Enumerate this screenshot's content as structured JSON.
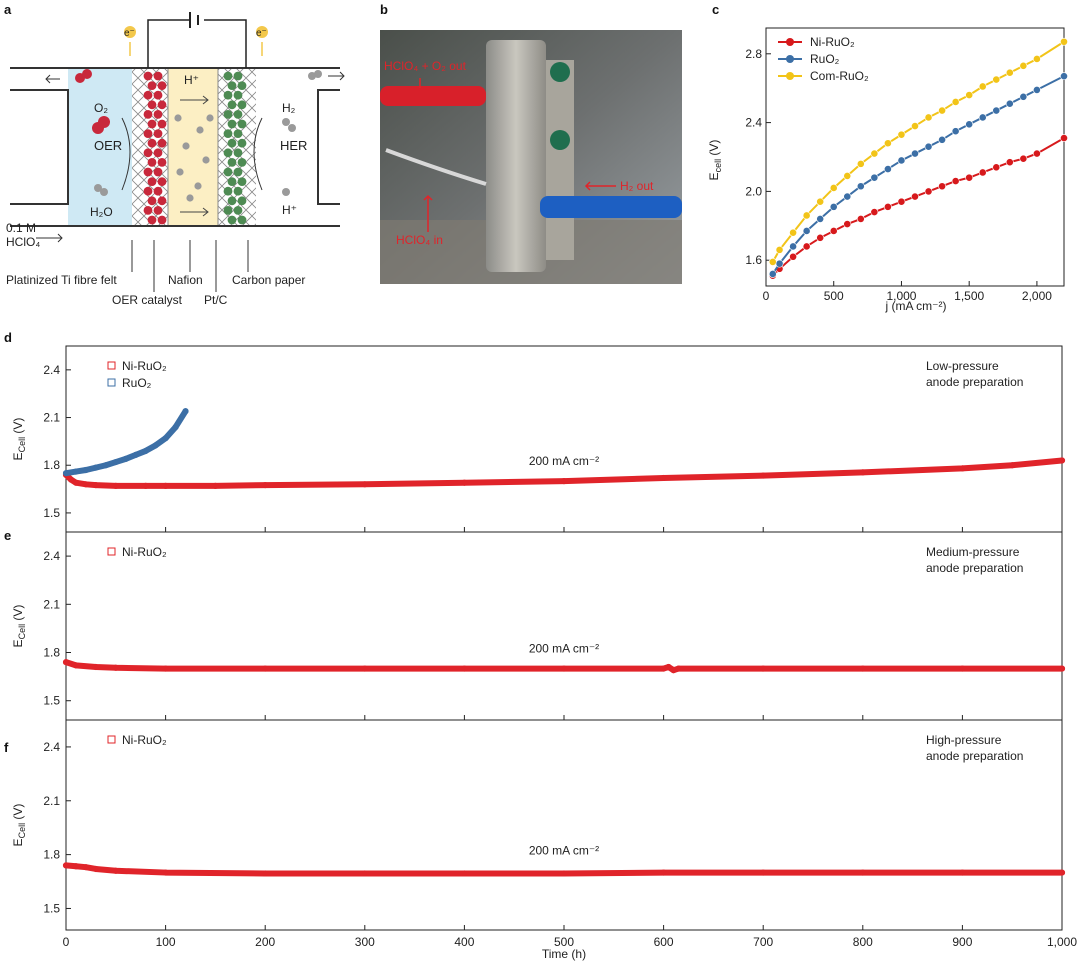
{
  "panel_labels": {
    "a": "a",
    "b": "b",
    "c": "c",
    "d": "d",
    "e": "e",
    "f": "f"
  },
  "schematic": {
    "electron_left": "e⁻",
    "electron_right": "e⁻",
    "proton": "H⁺",
    "o2": "O₂",
    "h2o": "H₂O",
    "oer": "OER",
    "h2": "H₂",
    "her": "HER",
    "h_plus": "H⁺",
    "electrolyte_line1": "0.1 M",
    "electrolyte_line2": "HClO₄",
    "label_felt": "Platinized Ti fibre felt",
    "label_catalyst": "OER catalyst",
    "label_nafion": "Nafion",
    "label_ptc": "Pt/C",
    "label_carbon": "Carbon paper",
    "colors": {
      "electrolyte": "#cfe9f4",
      "membrane": "#fcefc4",
      "anode_particle": "#c8283b",
      "cathode_particle": "#4e8b53",
      "ion": "#9a9a9a"
    }
  },
  "photo": {
    "label_o2_out": "HClO₄ + O₂ out",
    "label_h2_out": "H₂ out",
    "label_in": "HClO₄ in"
  },
  "chart_data": [
    {
      "id": "c",
      "type": "line",
      "xlabel": "j (mA cm⁻²)",
      "ylabel": "E_cell (V)",
      "xlim": [
        0,
        2200
      ],
      "ylim": [
        1.45,
        2.95
      ],
      "xticks": [
        0,
        500,
        1000,
        1500,
        2000
      ],
      "xtick_labels": [
        "0",
        "500",
        "1,000",
        "1,500",
        "2,000"
      ],
      "yticks": [
        1.6,
        2.0,
        2.4,
        2.8
      ],
      "ytick_labels": [
        "1.6",
        "2.0",
        "2.4",
        "2.8"
      ],
      "legend": "top-left",
      "x": [
        50,
        100,
        200,
        300,
        400,
        500,
        600,
        700,
        800,
        900,
        1000,
        1100,
        1200,
        1300,
        1400,
        1500,
        1600,
        1700,
        1800,
        1900,
        2000,
        2200
      ],
      "series": [
        {
          "name": "Ni-RuO₂",
          "color": "#d7191c",
          "values": [
            1.51,
            1.55,
            1.62,
            1.68,
            1.73,
            1.77,
            1.81,
            1.84,
            1.88,
            1.91,
            1.94,
            1.97,
            2.0,
            2.03,
            2.06,
            2.08,
            2.11,
            2.14,
            2.17,
            2.19,
            2.22,
            2.31
          ]
        },
        {
          "name": "RuO₂",
          "color": "#3c6fa6",
          "values": [
            1.52,
            1.58,
            1.68,
            1.77,
            1.84,
            1.91,
            1.97,
            2.03,
            2.08,
            2.13,
            2.18,
            2.22,
            2.26,
            2.3,
            2.35,
            2.39,
            2.43,
            2.47,
            2.51,
            2.55,
            2.59,
            2.67
          ]
        },
        {
          "name": "Com-RuO₂",
          "color": "#f2c418",
          "values": [
            1.59,
            1.66,
            1.76,
            1.86,
            1.94,
            2.02,
            2.09,
            2.16,
            2.22,
            2.28,
            2.33,
            2.38,
            2.43,
            2.47,
            2.52,
            2.56,
            2.61,
            2.65,
            2.69,
            2.73,
            2.77,
            2.87
          ]
        }
      ]
    },
    {
      "id": "d",
      "type": "scatter",
      "ylabel": "E_Cell (V)",
      "xlim": [
        0,
        1000
      ],
      "ylim": [
        1.38,
        2.55
      ],
      "yticks": [
        1.5,
        1.8,
        2.1,
        2.4
      ],
      "ytick_labels": [
        "1.5",
        "1.8",
        "2.1",
        "2.4"
      ],
      "legend": "top-left",
      "annotation": "200 mA cm⁻²",
      "note_line1": "Low-pressure",
      "note_line2": "anode preparation",
      "series": [
        {
          "name": "Ni-RuO₂",
          "color": "#e0242a",
          "x": [
            0,
            5,
            10,
            20,
            30,
            50,
            80,
            100,
            150,
            200,
            300,
            400,
            500,
            600,
            700,
            800,
            900,
            950,
            1000
          ],
          "values": [
            1.74,
            1.71,
            1.69,
            1.68,
            1.675,
            1.67,
            1.67,
            1.67,
            1.67,
            1.675,
            1.68,
            1.69,
            1.7,
            1.72,
            1.735,
            1.755,
            1.78,
            1.8,
            1.83
          ]
        },
        {
          "name": "RuO₂",
          "color": "#3c6fa6",
          "x": [
            0,
            10,
            20,
            30,
            40,
            50,
            60,
            70,
            80,
            90,
            100,
            110,
            120
          ],
          "values": [
            1.75,
            1.76,
            1.77,
            1.785,
            1.8,
            1.82,
            1.84,
            1.865,
            1.89,
            1.925,
            1.97,
            2.04,
            2.14
          ]
        }
      ]
    },
    {
      "id": "e",
      "type": "scatter",
      "ylabel": "E_Cell (V)",
      "xlim": [
        0,
        1000
      ],
      "ylim": [
        1.38,
        2.55
      ],
      "yticks": [
        1.5,
        1.8,
        2.1,
        2.4
      ],
      "ytick_labels": [
        "1.5",
        "1.8",
        "2.1",
        "2.4"
      ],
      "legend": "top-left",
      "annotation": "200 mA cm⁻²",
      "note_line1": "Medium-pressure",
      "note_line2": "anode preparation",
      "series": [
        {
          "name": "Ni-RuO₂",
          "color": "#e0242a",
          "x": [
            0,
            10,
            30,
            50,
            100,
            200,
            300,
            400,
            500,
            600,
            605,
            610,
            615,
            700,
            800,
            900,
            1000
          ],
          "values": [
            1.74,
            1.72,
            1.71,
            1.705,
            1.7,
            1.7,
            1.7,
            1.7,
            1.7,
            1.7,
            1.71,
            1.69,
            1.7,
            1.7,
            1.7,
            1.7,
            1.7
          ]
        }
      ]
    },
    {
      "id": "f",
      "type": "scatter",
      "ylabel": "E_Cell (V)",
      "xlabel": "Time (h)",
      "xlim": [
        0,
        1000
      ],
      "ylim": [
        1.38,
        2.55
      ],
      "xticks": [
        0,
        100,
        200,
        300,
        400,
        500,
        600,
        700,
        800,
        900,
        1000
      ],
      "xtick_labels": [
        "0",
        "100",
        "200",
        "300",
        "400",
        "500",
        "600",
        "700",
        "800",
        "900",
        "1,000"
      ],
      "yticks": [
        1.5,
        1.8,
        2.1,
        2.4
      ],
      "ytick_labels": [
        "1.5",
        "1.8",
        "2.1",
        "2.4"
      ],
      "legend": "top-left",
      "annotation": "200 mA cm⁻²",
      "note_line1": "High-pressure",
      "note_line2": "anode preparation",
      "series": [
        {
          "name": "Ni-RuO₂",
          "color": "#e0242a",
          "x": [
            0,
            10,
            20,
            30,
            50,
            100,
            200,
            300,
            400,
            500,
            600,
            700,
            800,
            900,
            1000
          ],
          "values": [
            1.74,
            1.735,
            1.73,
            1.72,
            1.71,
            1.7,
            1.695,
            1.695,
            1.695,
            1.695,
            1.7,
            1.7,
            1.7,
            1.7,
            1.7
          ]
        }
      ]
    }
  ]
}
